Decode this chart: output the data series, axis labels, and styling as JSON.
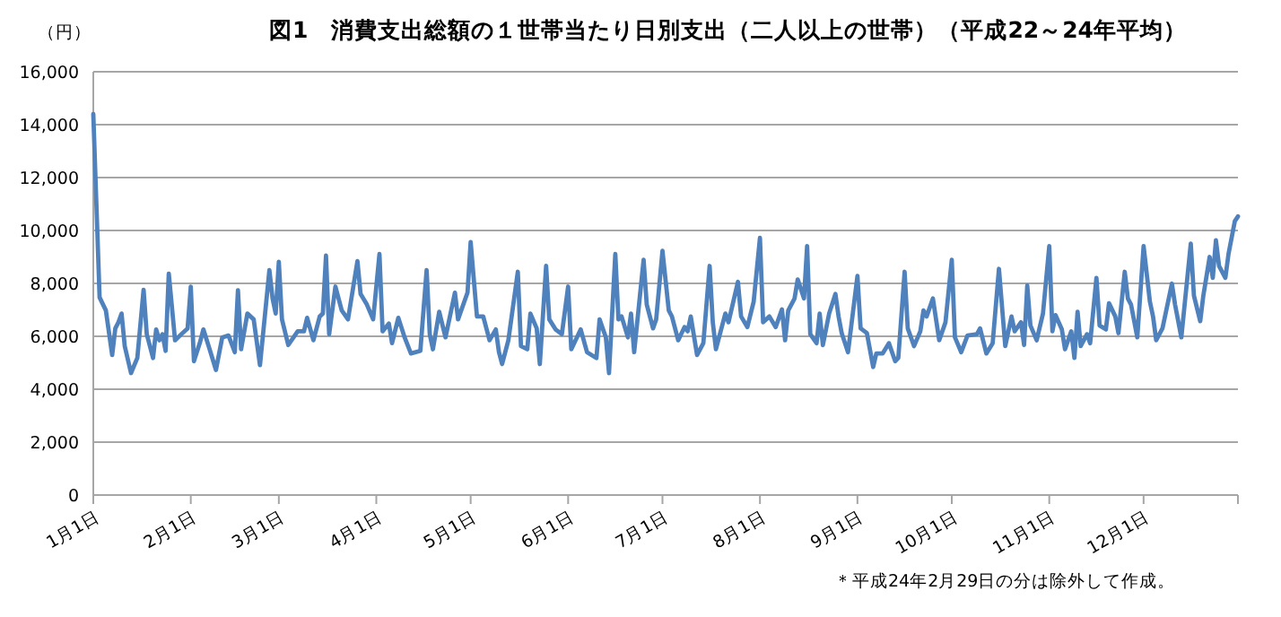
{
  "chart_data": {
    "type": "line",
    "title": "図1　消費支出総額の１世帯当たり日別支出（二人以上の世帯）（平成22～24年平均）",
    "ylabel": "（円）",
    "annotations": [
      "＊平成24年2月29日の分は除外して作成。"
    ],
    "x": [
      "--01-01",
      "--01-03",
      "--01-05",
      "--01-07",
      "--01-08",
      "--01-09",
      "--01-10",
      "--01-11",
      "--01-13",
      "--01-15",
      "--01-17",
      "--01-18",
      "--01-20",
      "--01-21",
      "--01-22",
      "--01-23",
      "--01-24",
      "--01-25",
      "--01-27",
      "--01-29",
      "--01-31",
      "--02-01",
      "--02-02",
      "--02-04",
      "--02-05",
      "--02-07",
      "--02-09",
      "--02-11",
      "--02-13",
      "--02-15",
      "--02-16",
      "--02-17",
      "--02-19",
      "--02-21",
      "--02-23",
      "--02-26",
      "--02-27",
      "--02-28",
      "--03-01",
      "--03-02",
      "--03-04",
      "--03-07",
      "--03-09",
      "--03-10",
      "--03-12",
      "--03-14",
      "--03-15",
      "--03-16",
      "--03-17",
      "--03-19",
      "--03-21",
      "--03-23",
      "--03-26",
      "--03-27",
      "--03-29",
      "--03-31",
      "--04-02",
      "--04-03",
      "--04-05",
      "--04-06",
      "--04-08",
      "--04-10",
      "--04-12",
      "--04-15",
      "--04-17",
      "--04-18",
      "--04-19",
      "--04-21",
      "--04-23",
      "--04-26",
      "--04-27",
      "--04-30",
      "--05-01",
      "--05-03",
      "--05-05",
      "--05-07",
      "--05-09",
      "--05-10",
      "--05-11",
      "--05-13",
      "--05-16",
      "--05-17",
      "--05-19",
      "--05-20",
      "--05-22",
      "--05-23",
      "--05-25",
      "--05-26",
      "--05-28",
      "--05-30",
      "--06-01",
      "--06-02",
      "--06-05",
      "--06-07",
      "--06-10",
      "--06-11",
      "--06-13",
      "--06-14",
      "--06-16",
      "--06-17",
      "--06-18",
      "--06-20",
      "--06-21",
      "--06-22",
      "--06-25",
      "--06-26",
      "--06-28",
      "--06-29",
      "--07-01",
      "--07-03",
      "--07-04",
      "--07-06",
      "--07-08",
      "--07-09",
      "--07-10",
      "--07-12",
      "--07-14",
      "--07-16",
      "--07-17",
      "--07-18",
      "--07-21",
      "--07-22",
      "--07-25",
      "--07-26",
      "--07-28",
      "--07-30",
      "--08-01",
      "--08-02",
      "--08-04",
      "--08-06",
      "--08-08",
      "--08-09",
      "--08-10",
      "--08-12",
      "--08-13",
      "--08-15",
      "--08-16",
      "--08-17",
      "--08-19",
      "--08-20",
      "--08-21",
      "--08-23",
      "--08-25",
      "--08-26",
      "--08-27",
      "--08-29",
      "--09-01",
      "--09-02",
      "--09-04",
      "--09-06",
      "--09-07",
      "--09-09",
      "--09-11",
      "--09-13",
      "--09-14",
      "--09-16",
      "--09-17",
      "--09-19",
      "--09-21",
      "--09-22",
      "--09-23",
      "--09-25",
      "--09-27",
      "--09-29",
      "--10-01",
      "--10-02",
      "--10-04",
      "--10-06",
      "--10-09",
      "--10-10",
      "--10-12",
      "--10-14",
      "--10-16",
      "--10-18",
      "--10-20",
      "--10-21",
      "--10-23",
      "--10-24",
      "--10-25",
      "--10-26",
      "--10-28",
      "--10-30",
      "--11-01",
      "--11-02",
      "--11-03",
      "--11-05",
      "--11-06",
      "--11-08",
      "--11-09",
      "--11-10",
      "--11-11",
      "--11-13",
      "--11-14",
      "--11-16",
      "--11-17",
      "--11-19",
      "--11-20",
      "--11-22",
      "--11-23",
      "--11-25",
      "--11-26",
      "--11-27",
      "--11-29",
      "--12-01",
      "--12-03",
      "--12-04",
      "--12-05",
      "--12-07",
      "--12-10",
      "--12-11",
      "--12-13",
      "--12-16",
      "--12-17",
      "--12-19",
      "--12-20",
      "--12-22",
      "--12-23",
      "--12-24",
      "--12-25",
      "--12-27",
      "--12-28",
      "--12-30",
      "--12-31"
    ],
    "series": [
      {
        "color": "#4f81bd",
        "values": [
          14400,
          7470,
          6980,
          5290,
          6300,
          6530,
          6860,
          5630,
          4610,
          5180,
          7760,
          6080,
          5180,
          6260,
          5850,
          6080,
          5450,
          8370,
          5850,
          6080,
          6300,
          7880,
          5060,
          5800,
          6260,
          5510,
          4730,
          5960,
          6030,
          5400,
          7740,
          5510,
          6860,
          6640,
          4910,
          8500,
          7430,
          6860,
          8820,
          6640,
          5670,
          6190,
          6190,
          6700,
          5850,
          6750,
          6860,
          9050,
          6080,
          7880,
          6980,
          6640,
          8840,
          7600,
          7200,
          6640,
          9110,
          6190,
          6480,
          5740,
          6700,
          5960,
          5350,
          5450,
          8500,
          6080,
          5510,
          6930,
          5960,
          7650,
          6640,
          7650,
          9560,
          6750,
          6750,
          5850,
          6260,
          5400,
          4950,
          5850,
          8440,
          5630,
          5510,
          6860,
          6300,
          4950,
          8660,
          6640,
          6260,
          6080,
          7880,
          5510,
          6260,
          5400,
          5180,
          6640,
          5960,
          4610,
          9110,
          6640,
          6750,
          5960,
          6860,
          5400,
          8890,
          7200,
          6300,
          6640,
          9230,
          6980,
          6750,
          5850,
          6350,
          6190,
          6750,
          5290,
          5740,
          8660,
          6530,
          5510,
          6860,
          6530,
          8060,
          6750,
          6350,
          7310,
          9720,
          6530,
          6750,
          6350,
          7020,
          5850,
          6980,
          7430,
          8150,
          7430,
          9410,
          6080,
          5740,
          6860,
          5670,
          6860,
          7600,
          6750,
          6120,
          5400,
          8280,
          6300,
          6120,
          4840,
          5350,
          5350,
          5740,
          5060,
          5180,
          8440,
          6300,
          5630,
          6190,
          6980,
          6750,
          7430,
          5850,
          6530,
          8890,
          5960,
          5400,
          6030,
          6080,
          6300,
          5350,
          5740,
          8550,
          5630,
          6750,
          6190,
          6530,
          5670,
          7920,
          6410,
          5850,
          6860,
          9410,
          6190,
          6800,
          6260,
          5510,
          6190,
          5180,
          6930,
          5630,
          6080,
          5740,
          8210,
          6410,
          6260,
          7250,
          6750,
          6120,
          8440,
          7430,
          7200,
          5960,
          9410,
          7310,
          6750,
          5850,
          6300,
          7990,
          7200,
          5960,
          9500,
          7540,
          6570,
          7540,
          9000,
          8210,
          9630,
          8660,
          8210,
          9110,
          10350,
          10530
        ]
      }
    ],
    "xlim": [
      "--01-01",
      "--12-31"
    ],
    "xticks": [
      {
        "value": "--01-01",
        "label": "1月1日"
      },
      {
        "value": "--02-01",
        "label": "2月1日"
      },
      {
        "value": "--03-01",
        "label": "3月1日"
      },
      {
        "value": "--04-01",
        "label": "4月1日"
      },
      {
        "value": "--05-01",
        "label": "5月1日"
      },
      {
        "value": "--06-01",
        "label": "6月1日"
      },
      {
        "value": "--07-01",
        "label": "7月1日"
      },
      {
        "value": "--08-01",
        "label": "8月1日"
      },
      {
        "value": "--09-01",
        "label": "9月1日"
      },
      {
        "value": "--10-01",
        "label": "10月1日"
      },
      {
        "value": "--11-01",
        "label": "11月1日"
      },
      {
        "value": "--12-01",
        "label": "12月1日"
      },
      {
        "value": "--12-31",
        "label": null
      }
    ],
    "ylim": [
      0,
      16000
    ],
    "yticks": [
      0,
      {
        "value": 2000,
        "label": "2,000"
      },
      {
        "value": 4000,
        "label": "4,000"
      },
      {
        "value": 6000,
        "label": "6,000"
      },
      {
        "value": 8000,
        "label": "8,000"
      },
      {
        "value": 10000,
        "label": "10,000"
      },
      {
        "value": 12000,
        "label": "12,000"
      },
      {
        "value": 14000,
        "label": "14,000"
      },
      {
        "value": 16000,
        "label": "16,000"
      }
    ],
    "grid": "y",
    "marker": "none",
    "line_style": "solid"
  }
}
